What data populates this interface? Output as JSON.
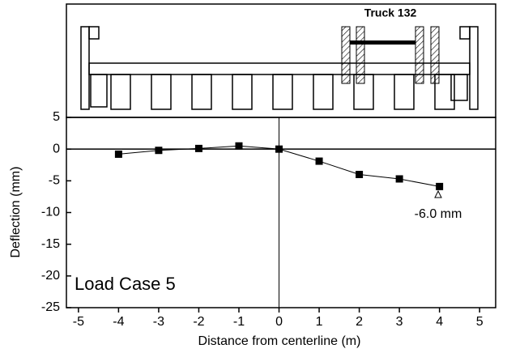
{
  "chart_data": {
    "type": "line",
    "x_label": "Distance from centerline (m)",
    "y_label": "Deflection (mm)",
    "annotations": [
      "Truck 132",
      "-6.0 mm",
      "Load Case 5"
    ],
    "x": [
      -4,
      -3,
      -2,
      -1,
      0,
      1,
      2,
      3,
      4
    ],
    "series": [
      {
        "color": "#000000",
        "values": [
          -0.8,
          -0.2,
          0.1,
          0.5,
          0.0,
          -1.9,
          -4.0,
          -4.7,
          -5.9
        ]
      }
    ],
    "xlim": [
      -5.3,
      5.4
    ],
    "xticks": [
      -5,
      -4,
      -3,
      -2,
      -1,
      0,
      1,
      2,
      3,
      4,
      5
    ],
    "ylim": [
      -25,
      5
    ],
    "yticks": [
      -25,
      -20,
      -15,
      -10,
      -5,
      0,
      5
    ]
  }
}
